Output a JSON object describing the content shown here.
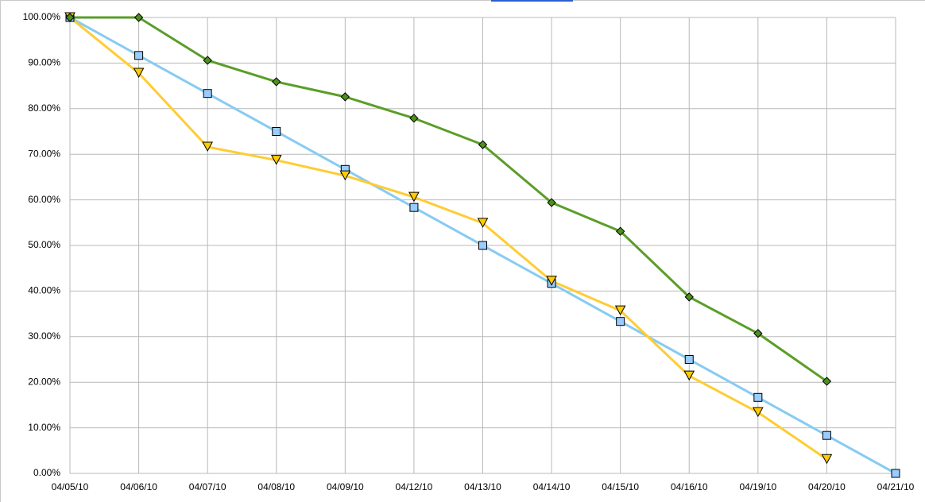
{
  "chart_data": {
    "type": "line",
    "categories": [
      "04/05/10",
      "04/06/10",
      "04/07/10",
      "04/08/10",
      "04/09/10",
      "04/12/10",
      "04/13/10",
      "04/14/10",
      "04/15/10",
      "04/16/10",
      "04/19/10",
      "04/20/10",
      "04/21/10"
    ],
    "series": [
      {
        "color": "#87cbf3",
        "marker": "square",
        "marker_color": "#99ccff",
        "values": [
          100,
          91.67,
          83.33,
          75,
          66.67,
          58.33,
          50,
          41.67,
          33.33,
          25,
          16.67,
          8.33,
          0
        ]
      },
      {
        "color": "#ffcc33",
        "marker": "triangle-down",
        "marker_color": "#ffcc00",
        "values": [
          100,
          87.8,
          71.6,
          68.7,
          65.3,
          60.6,
          54.9,
          42.2,
          35.7,
          21.4,
          13.4,
          3.1,
          null
        ]
      },
      {
        "color": "#5a9e28",
        "marker": "diamond",
        "marker_color": "#4f8f1f",
        "values": [
          100,
          100,
          90.6,
          85.9,
          82.6,
          77.9,
          72.1,
          59.4,
          53.1,
          38.7,
          30.7,
          20.2,
          null
        ]
      }
    ],
    "ylim": [
      0,
      100
    ],
    "yticks": [
      {
        "value": 0,
        "label": "0.00%"
      },
      {
        "value": 10,
        "label": "10.00%"
      },
      {
        "value": 20,
        "label": "20.00%"
      },
      {
        "value": 30,
        "label": "30.00%"
      },
      {
        "value": 40,
        "label": "40.00%"
      },
      {
        "value": 50,
        "label": "50.00%"
      },
      {
        "value": 60,
        "label": "60.00%"
      },
      {
        "value": 70,
        "label": "70.00%"
      },
      {
        "value": 80,
        "label": "80.00%"
      },
      {
        "value": 90,
        "label": "90.00%"
      },
      {
        "value": 100,
        "label": "100.00%"
      }
    ],
    "grid": true
  }
}
